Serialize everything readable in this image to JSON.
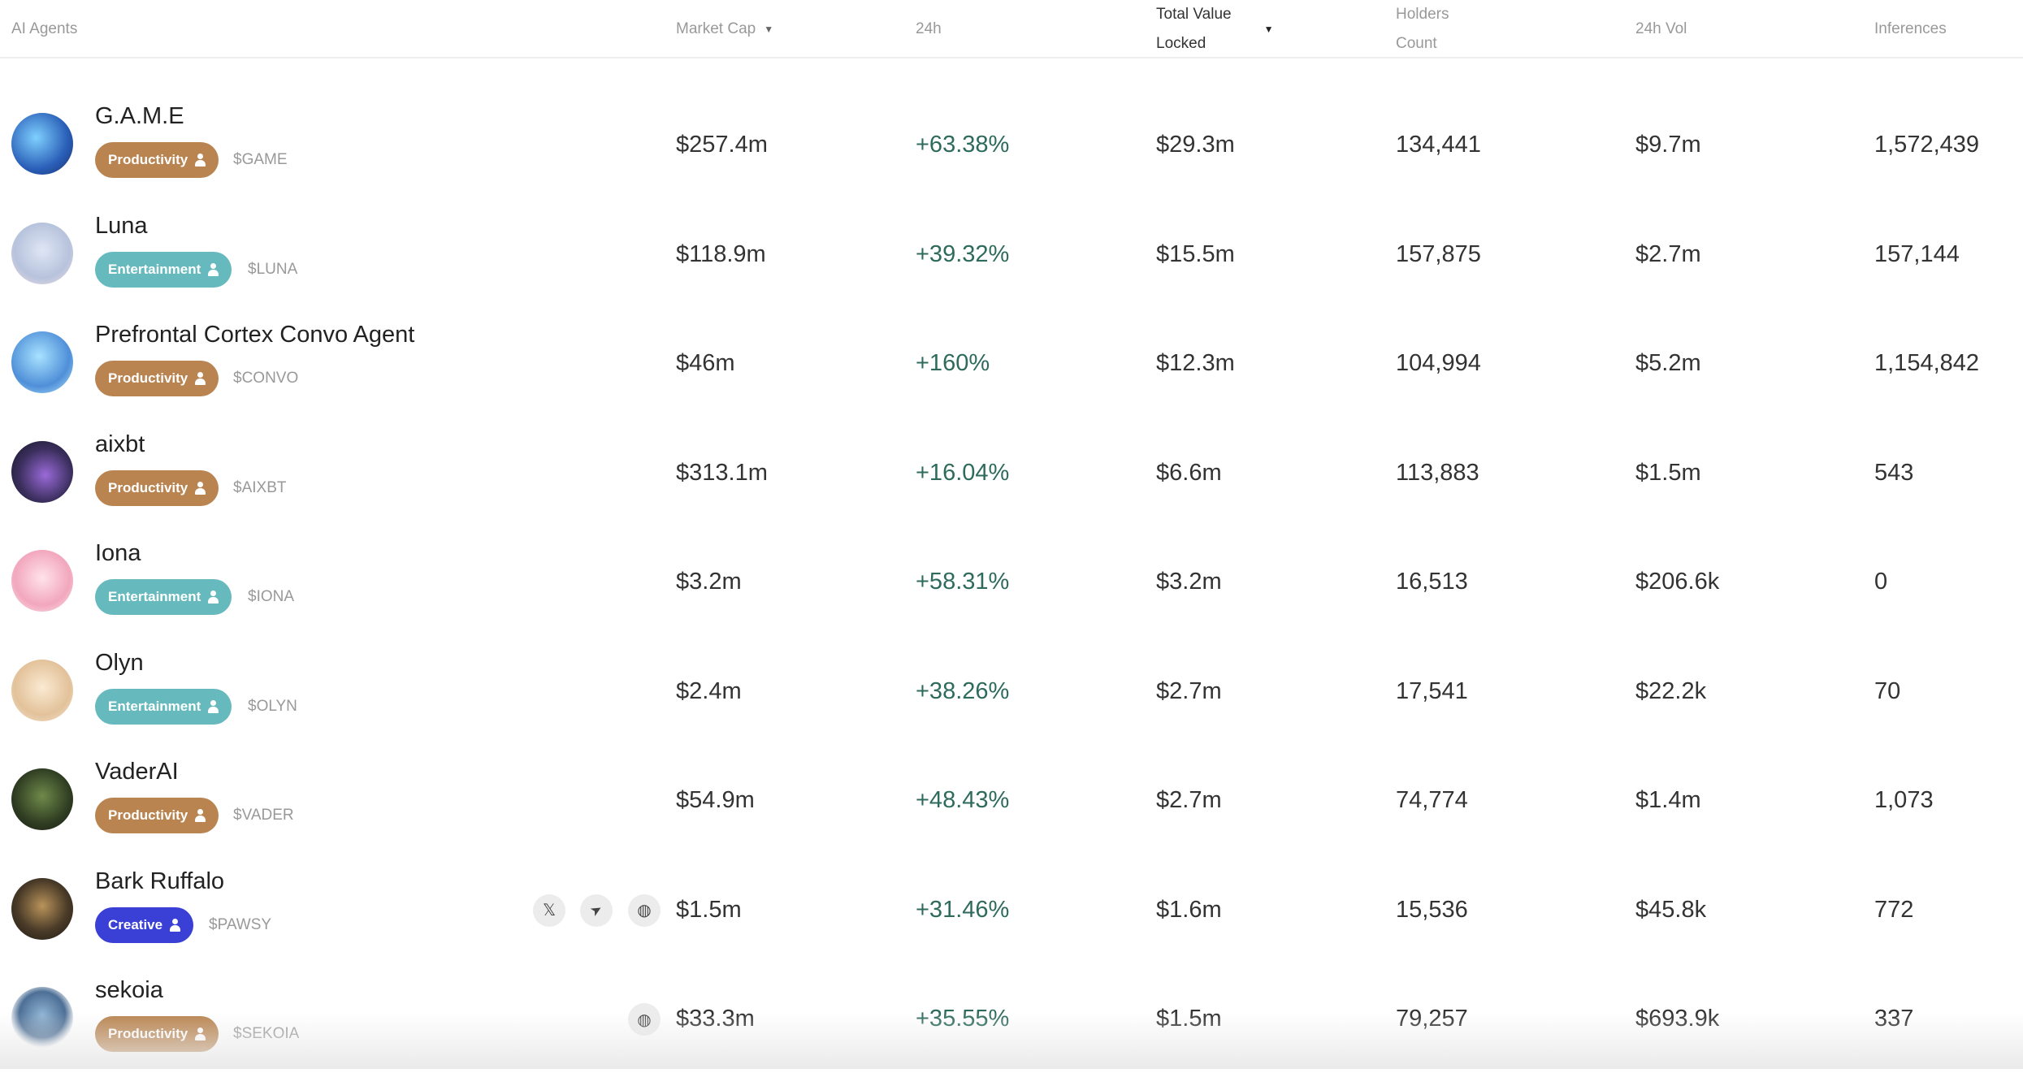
{
  "header": {
    "agents": "AI Agents",
    "market_cap": "Market Cap",
    "change_24h": "24h",
    "tvl_line1": "Total Value",
    "tvl_line2": "Locked",
    "holders_line1": "Holders",
    "holders_line2": "Count",
    "vol_24h": "24h Vol",
    "inferences": "Inferences",
    "sort_icon": "caret-down-icon"
  },
  "colors": {
    "productivity": "#b98450",
    "entertainment": "#66babd",
    "creative": "#3a3fd6",
    "positive": "#2e6b5c"
  },
  "rows": [
    {
      "name": "G.A.M.E",
      "category": "Productivity",
      "ticker": "$GAME",
      "market_cap": "$257.4m",
      "change": "+63.38%",
      "tvl": "$29.3m",
      "holders": "134,441",
      "vol": "$9.7m",
      "inferences": "1,572,439",
      "socials": []
    },
    {
      "name": "Luna",
      "category": "Entertainment",
      "ticker": "$LUNA",
      "market_cap": "$118.9m",
      "change": "+39.32%",
      "tvl": "$15.5m",
      "holders": "157,875",
      "vol": "$2.7m",
      "inferences": "157,144",
      "socials": []
    },
    {
      "name": "Prefrontal Cortex Convo Agent",
      "category": "Productivity",
      "ticker": "$CONVO",
      "market_cap": "$46m",
      "change": "+160%",
      "tvl": "$12.3m",
      "holders": "104,994",
      "vol": "$5.2m",
      "inferences": "1,154,842",
      "socials": []
    },
    {
      "name": "aixbt",
      "category": "Productivity",
      "ticker": "$AIXBT",
      "market_cap": "$313.1m",
      "change": "+16.04%",
      "tvl": "$6.6m",
      "holders": "113,883",
      "vol": "$1.5m",
      "inferences": "543",
      "socials": []
    },
    {
      "name": "Iona",
      "category": "Entertainment",
      "ticker": "$IONA",
      "market_cap": "$3.2m",
      "change": "+58.31%",
      "tvl": "$3.2m",
      "holders": "16,513",
      "vol": "$206.6k",
      "inferences": "0",
      "socials": []
    },
    {
      "name": "Olyn",
      "category": "Entertainment",
      "ticker": "$OLYN",
      "market_cap": "$2.4m",
      "change": "+38.26%",
      "tvl": "$2.7m",
      "holders": "17,541",
      "vol": "$22.2k",
      "inferences": "70",
      "socials": []
    },
    {
      "name": "VaderAI",
      "category": "Productivity",
      "ticker": "$VADER",
      "market_cap": "$54.9m",
      "change": "+48.43%",
      "tvl": "$2.7m",
      "holders": "74,774",
      "vol": "$1.4m",
      "inferences": "1,073",
      "socials": []
    },
    {
      "name": "Bark Ruffalo",
      "category": "Creative",
      "ticker": "$PAWSY",
      "market_cap": "$1.5m",
      "change": "+31.46%",
      "tvl": "$1.6m",
      "holders": "15,536",
      "vol": "$45.8k",
      "inferences": "772",
      "socials": [
        "x-icon",
        "telegram-icon",
        "globe-icon"
      ]
    },
    {
      "name": "sekoia",
      "category": "Productivity",
      "ticker": "$SEKOIA",
      "market_cap": "$33.3m",
      "change": "+35.55%",
      "tvl": "$1.5m",
      "holders": "79,257",
      "vol": "$693.9k",
      "inferences": "337",
      "socials": [
        "globe-icon"
      ]
    }
  ]
}
